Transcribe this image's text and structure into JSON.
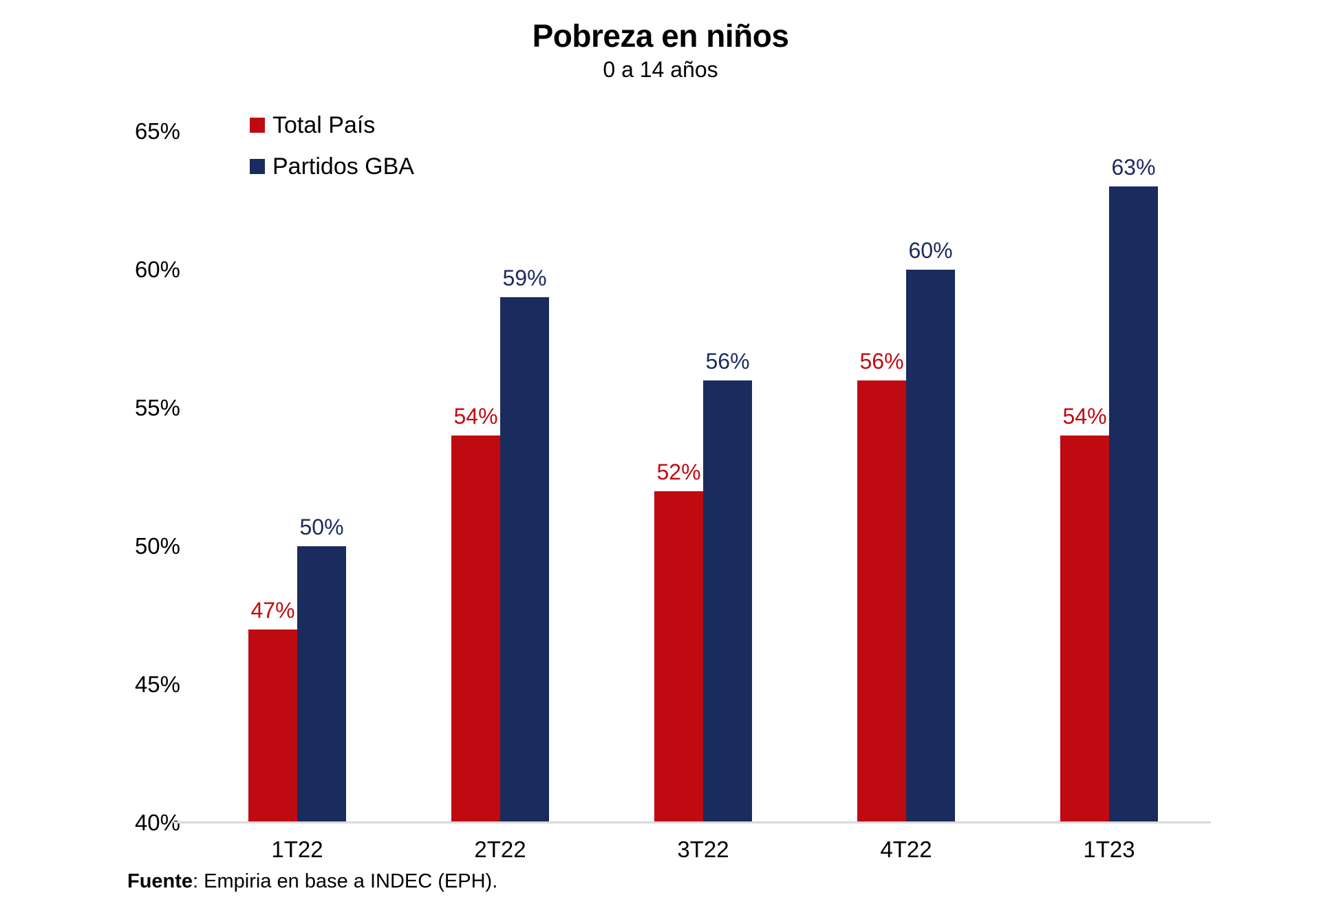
{
  "chart": {
    "title": "Pobreza en niños",
    "subtitle": "0 a 14 años"
  },
  "source": {
    "label": "Fuente",
    "text": ": Empiria en base a INDEC (EPH)."
  },
  "colors": {
    "total_pais": "#C00A12",
    "partidos_gba": "#1A2B5E",
    "axis_line": "#D9D9D9",
    "text": "#000000",
    "background": "#FFFFFF"
  },
  "chart_data": {
    "type": "bar",
    "title": "Pobreza en niños",
    "subtitle": "0 a 14 años",
    "categories": [
      "1T22",
      "2T22",
      "3T22",
      "4T22",
      "1T23"
    ],
    "series": [
      {
        "name": "Total País",
        "color": "#C00A12",
        "values": [
          47,
          54,
          52,
          56,
          54
        ],
        "labels": [
          "47%",
          "54%",
          "52%",
          "56%",
          "54%"
        ]
      },
      {
        "name": "Partidos GBA",
        "color": "#1A2B5E",
        "values": [
          50,
          59,
          56,
          60,
          63
        ],
        "labels": [
          "50%",
          "59%",
          "56%",
          "60%",
          "63%"
        ]
      }
    ],
    "xlabel": "",
    "ylabel": "",
    "ylim": [
      40,
      65
    ],
    "yticks": [
      40,
      45,
      50,
      55,
      60,
      65
    ],
    "ytick_labels": [
      "40%",
      "45%",
      "50%",
      "55%",
      "60%",
      "65%"
    ],
    "grid": false,
    "legend_position": "top-left",
    "annotation_source": "Fuente: Empiria en base a INDEC (EPH)."
  }
}
